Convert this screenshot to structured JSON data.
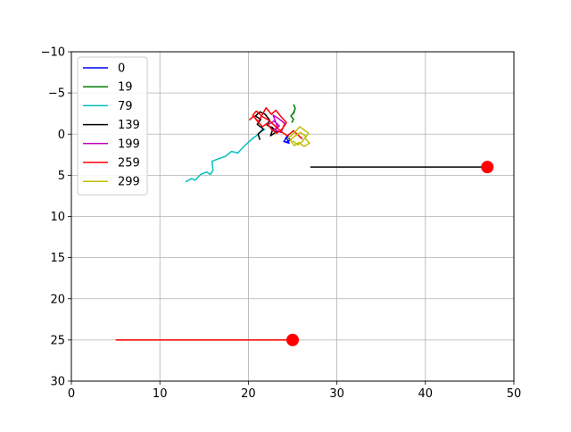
{
  "chart_data": {
    "type": "line",
    "title": "",
    "xlabel": "",
    "ylabel": "",
    "xlim": [
      0,
      50
    ],
    "ylim": [
      -10,
      30
    ],
    "y_inverted": true,
    "grid": true,
    "legend_position": "top-left",
    "x_ticks": [
      "0",
      "10",
      "20",
      "30",
      "40",
      "50"
    ],
    "y_ticks": [
      "−10",
      "−5",
      "0",
      "5",
      "10",
      "15",
      "20",
      "25",
      "30"
    ],
    "series": [
      {
        "name": "0",
        "color": "#0000ff",
        "x": [
          24.6,
          24.2,
          24.5,
          24.0,
          24.6,
          24.3,
          24.8,
          24.2
        ],
        "y": [
          0.0,
          0.5,
          0.2,
          0.9,
          1.1,
          0.4,
          0.7,
          1.0
        ]
      },
      {
        "name": "19",
        "color": "#008000",
        "x": [
          24.9,
          25.1,
          24.8,
          25.2,
          25.0,
          25.3,
          25.1
        ],
        "y": [
          -1.4,
          -1.8,
          -2.2,
          -2.7,
          -2.4,
          -3.1,
          -3.6
        ]
      },
      {
        "name": "79",
        "color": "#00bfbf",
        "x": [
          12.9,
          13.6,
          14.0,
          14.6,
          15.3,
          15.7,
          16.0,
          15.9,
          16.6,
          17.4,
          18.1,
          18.8,
          19.4,
          20.0,
          20.4,
          20.9,
          21.4,
          21.9
        ],
        "y": [
          5.8,
          5.4,
          5.6,
          4.9,
          4.6,
          4.9,
          4.4,
          3.3,
          3.0,
          2.7,
          2.1,
          2.3,
          1.6,
          1.0,
          0.6,
          0.2,
          -0.3,
          -0.6
        ]
      },
      {
        "name": "139",
        "color": "#000000",
        "x": [
          21.3,
          21.1,
          21.7,
          21.0,
          21.4,
          20.8,
          21.3,
          21.9,
          22.4,
          22.1,
          22.8,
          22.5,
          23.2,
          22.6
        ],
        "y": [
          0.7,
          0.0,
          -0.6,
          -1.2,
          -1.8,
          -2.2,
          -2.7,
          -2.4,
          -1.7,
          -1.1,
          -0.7,
          0.2,
          -0.3,
          -0.9
        ]
      },
      {
        "name": "199",
        "color": "#bf00bf",
        "x": [
          22.3,
          22.9,
          23.5,
          23.0,
          23.7,
          24.1,
          23.4,
          22.8,
          23.3,
          22.6
        ],
        "y": [
          -1.2,
          -1.6,
          -1.0,
          -0.5,
          -0.2,
          -1.3,
          -1.9,
          -2.3,
          -0.8,
          -0.4
        ]
      },
      {
        "name": "259",
        "color": "#ff0000",
        "x": [
          20.1,
          20.6,
          21.1,
          21.7,
          22.0,
          22.6,
          23.1,
          23.7,
          24.3,
          23.8,
          23.2,
          22.6,
          22.1,
          21.6,
          21.0,
          20.5,
          20.9,
          21.6,
          22.3,
          23.0,
          23.7,
          24.4,
          25.1,
          25.6,
          26.1
        ],
        "y": [
          -1.7,
          -2.2,
          -1.5,
          -2.6,
          -3.2,
          -2.4,
          -2.9,
          -2.1,
          -1.4,
          -0.6,
          -0.1,
          -0.6,
          -1.3,
          -0.9,
          -1.6,
          -2.3,
          -2.8,
          -2.1,
          -1.7,
          -1.0,
          -0.3,
          0.2,
          -0.4,
          0.1,
          0.6
        ]
      },
      {
        "name": "299",
        "color": "#bfbf00",
        "x": [
          24.4,
          24.9,
          25.4,
          25.8,
          26.3,
          26.8,
          26.4,
          26.9,
          26.3,
          25.7,
          25.2,
          24.7,
          25.3,
          25.9,
          26.5,
          26.1,
          25.6,
          25.0
        ],
        "y": [
          0.6,
          0.1,
          -0.4,
          -0.9,
          -0.5,
          -0.1,
          0.5,
          1.1,
          1.5,
          1.0,
          1.4,
          0.7,
          0.2,
          -0.2,
          0.3,
          0.9,
          1.3,
          0.8
        ]
      }
    ],
    "extra_lines": [
      {
        "color": "#000000",
        "x": [
          27,
          47
        ],
        "y": [
          4,
          4
        ]
      },
      {
        "color": "#ff0000",
        "x": [
          5,
          25
        ],
        "y": [
          25,
          25
        ]
      }
    ],
    "markers": [
      {
        "color": "#ff0000",
        "x": 47,
        "y": 4
      },
      {
        "color": "#ff0000",
        "x": 25,
        "y": 25
      }
    ]
  }
}
